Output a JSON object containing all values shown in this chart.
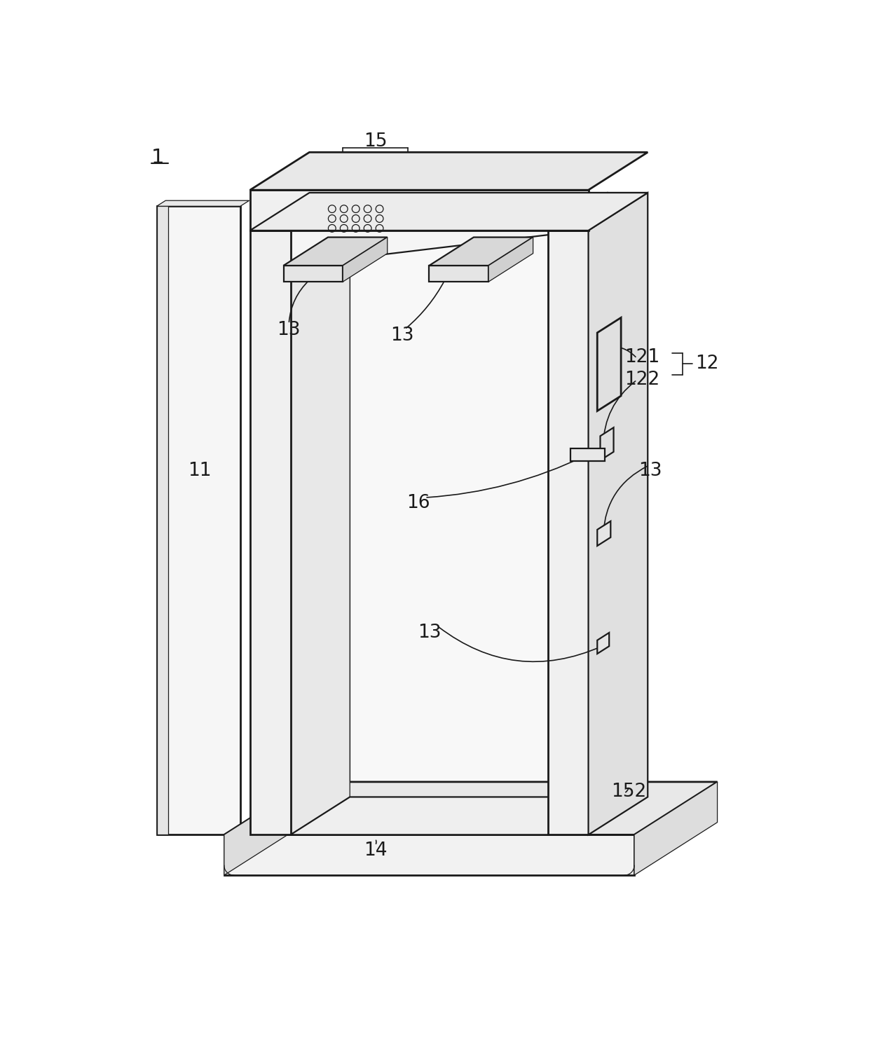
{
  "bg_color": "#ffffff",
  "lc": "#1a1a1a",
  "lw": 1.6,
  "lw_thin": 0.9,
  "lw_thick": 2.0,
  "fig_w": 12.4,
  "fig_h": 14.9
}
